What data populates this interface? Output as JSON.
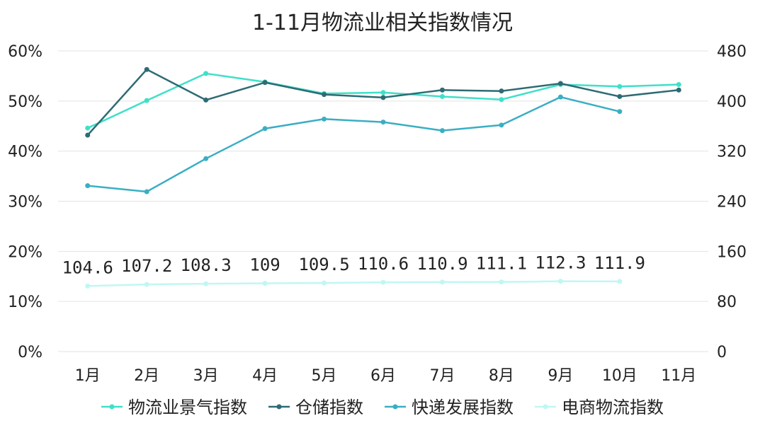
{
  "chart_data": {
    "type": "line",
    "title": "1-11月物流业相关指数情况",
    "categories": [
      "1月",
      "2月",
      "3月",
      "4月",
      "5月",
      "6月",
      "7月",
      "8月",
      "9月",
      "10月",
      "11月"
    ],
    "y_left": {
      "ticks": [
        "0%",
        "10%",
        "20%",
        "30%",
        "40%",
        "50%",
        "60%"
      ],
      "range": [
        0,
        60
      ]
    },
    "y_right": {
      "ticks": [
        "0",
        "80",
        "160",
        "240",
        "320",
        "400",
        "480"
      ],
      "range": [
        0,
        480
      ]
    },
    "grid": true,
    "legend_position": "bottom",
    "series": [
      {
        "name": "物流业景气指数",
        "axis": "left",
        "color": "#3fe0c8",
        "values": [
          44.6,
          50.1,
          55.5,
          53.8,
          51.5,
          51.7,
          50.9,
          50.3,
          53.3,
          52.9,
          53.3
        ]
      },
      {
        "name": "仓储指数",
        "axis": "left",
        "color": "#2e6b73",
        "values": [
          43.2,
          56.3,
          50.2,
          53.7,
          51.3,
          50.7,
          52.2,
          52.0,
          53.5,
          50.9,
          52.2
        ]
      },
      {
        "name": "快递发展指数",
        "axis": "left",
        "color": "#3aaec4",
        "values": [
          33.1,
          31.9,
          38.5,
          44.5,
          46.4,
          45.8,
          44.1,
          45.2,
          50.8,
          47.9,
          null
        ]
      },
      {
        "name": "电商物流指数",
        "axis": "right",
        "color": "#bff7f4",
        "values": [
          104.6,
          107.2,
          108.3,
          109,
          109.5,
          110.6,
          110.9,
          111.1,
          112.3,
          111.9,
          null
        ],
        "data_labels": [
          "104.6",
          "107.2",
          "108.3",
          "109",
          "109.5",
          "110.6",
          "110.9",
          "111.1",
          "112.3",
          "111.9"
        ]
      }
    ]
  }
}
